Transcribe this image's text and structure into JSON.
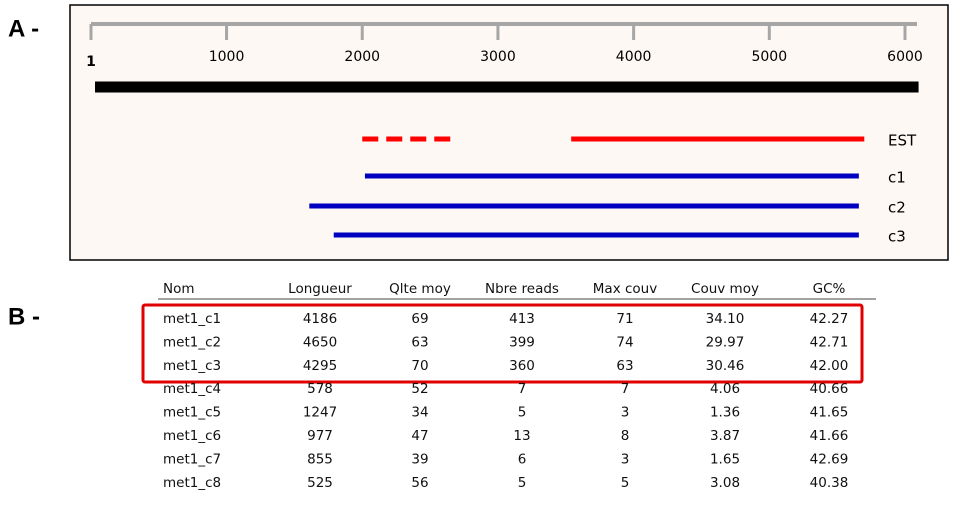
{
  "panel_a": {
    "label": "A -",
    "axis": {
      "xlim": [
        1,
        6000
      ],
      "color": "#a6a6a6",
      "ticks": [
        1,
        1000,
        2000,
        3000,
        4000,
        5000,
        6000
      ]
    },
    "genome": {
      "start": 1,
      "end": 6100,
      "color": "#000000"
    },
    "tracks": [
      {
        "label": "EST",
        "color": "#ff0000",
        "segments": [
          {
            "start": 2000,
            "end": 2700,
            "style": "dashed"
          },
          {
            "start": 3540,
            "end": 5700,
            "style": "solid"
          }
        ]
      },
      {
        "label": "c1",
        "color": "#0000c0",
        "segments": [
          {
            "start": 2020,
            "end": 5660,
            "style": "solid"
          }
        ]
      },
      {
        "label": "c2",
        "color": "#0000c0",
        "segments": [
          {
            "start": 1610,
            "end": 5660,
            "style": "solid"
          }
        ]
      },
      {
        "label": "c3",
        "color": "#0000c0",
        "segments": [
          {
            "start": 1790,
            "end": 5660,
            "style": "solid"
          }
        ]
      }
    ]
  },
  "panel_b": {
    "label": "B -",
    "table": {
      "columns": [
        "Nom",
        "Longueur",
        "Qlte moy",
        "Nbre reads",
        "Max couv",
        "Couv moy",
        "GC%"
      ],
      "rows": [
        [
          "met1_c1",
          "4186",
          "69",
          "413",
          "71",
          "34.10",
          "42.27"
        ],
        [
          "met1_c2",
          "4650",
          "63",
          "399",
          "74",
          "29.97",
          "42.71"
        ],
        [
          "met1_c3",
          "4295",
          "70",
          "360",
          "63",
          "30.46",
          "42.00"
        ],
        [
          "met1_c4",
          "578",
          "52",
          "7",
          "7",
          "4.06",
          "40.66"
        ],
        [
          "met1_c5",
          "1247",
          "34",
          "5",
          "3",
          "1.36",
          "41.65"
        ],
        [
          "met1_c6",
          "977",
          "47",
          "13",
          "8",
          "3.87",
          "41.66"
        ],
        [
          "met1_c7",
          "855",
          "39",
          "6",
          "3",
          "1.65",
          "42.69"
        ],
        [
          "met1_c8",
          "525",
          "56",
          "5",
          "5",
          "3.08",
          "40.38"
        ]
      ]
    }
  }
}
